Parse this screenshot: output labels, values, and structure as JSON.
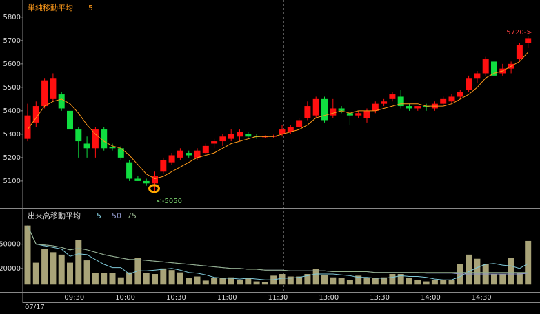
{
  "chart_data": [
    {
      "type": "candlestick",
      "title": "単純移動平均",
      "categories": [
        null,
        null,
        null,
        null,
        null,
        null,
        "09:30",
        null,
        null,
        null,
        null,
        null,
        "10:00",
        null,
        null,
        null,
        null,
        null,
        "10:30",
        null,
        null,
        null,
        null,
        null,
        "11:00",
        null,
        null,
        null,
        null,
        null,
        "11:30",
        null,
        null,
        null,
        null,
        null,
        "13:00",
        null,
        null,
        null,
        null,
        null,
        "13:30",
        null,
        null,
        null,
        null,
        null,
        "14:00",
        null,
        null,
        null,
        null,
        null,
        "14:30",
        null,
        null,
        null,
        null,
        null
      ],
      "open": [
        5280,
        5350,
        5420,
        5450,
        5470,
        5400,
        5320,
        5260,
        5240,
        5320,
        5245,
        5240,
        5180,
        5110,
        5100,
        5090,
        5140,
        5180,
        5200,
        5220,
        5200,
        5220,
        5260,
        5270,
        5280,
        5290,
        5300,
        5292,
        5288,
        5290,
        5300,
        5310,
        5330,
        5370,
        5380,
        5450,
        5380,
        5410,
        5390,
        5380,
        5370,
        5400,
        5430,
        5450,
        5460,
        5420,
        5410,
        5420,
        5410,
        5430,
        5440,
        5460,
        5490,
        5540,
        5560,
        5610,
        5560,
        5580,
        5620,
        5690
      ],
      "high": [
        5430,
        5440,
        5540,
        5560,
        5480,
        5410,
        5330,
        5290,
        5330,
        5330,
        5260,
        5250,
        5190,
        5120,
        5110,
        5140,
        5200,
        5220,
        5240,
        5230,
        5240,
        5260,
        5280,
        5300,
        5320,
        5320,
        5310,
        5300,
        5295,
        5298,
        5340,
        5340,
        5370,
        5440,
        5460,
        5460,
        5450,
        5420,
        5390,
        5400,
        5410,
        5440,
        5450,
        5480,
        5490,
        5430,
        5420,
        5430,
        5440,
        5460,
        5470,
        5490,
        5550,
        5570,
        5630,
        5650,
        5600,
        5610,
        5690,
        5720
      ],
      "low": [
        5270,
        5330,
        5410,
        5440,
        5400,
        5300,
        5200,
        5200,
        5200,
        5230,
        5230,
        5190,
        5100,
        5100,
        5080,
        5050,
        5130,
        5170,
        5190,
        5200,
        5190,
        5210,
        5240,
        5250,
        5270,
        5270,
        5280,
        5280,
        5285,
        5285,
        5290,
        5300,
        5320,
        5360,
        5370,
        5350,
        5370,
        5390,
        5340,
        5370,
        5350,
        5390,
        5420,
        5440,
        5410,
        5400,
        5400,
        5400,
        5400,
        5420,
        5430,
        5450,
        5480,
        5520,
        5550,
        5540,
        5550,
        5560,
        5610,
        5670
      ],
      "close": [
        5380,
        5420,
        5530,
        5540,
        5410,
        5320,
        5270,
        5240,
        5320,
        5240,
        5240,
        5200,
        5110,
        5100,
        5090,
        5120,
        5190,
        5210,
        5230,
        5210,
        5230,
        5250,
        5270,
        5290,
        5300,
        5310,
        5290,
        5288,
        5290,
        5292,
        5320,
        5330,
        5360,
        5420,
        5450,
        5360,
        5410,
        5400,
        5380,
        5390,
        5400,
        5430,
        5440,
        5470,
        5420,
        5410,
        5420,
        5415,
        5430,
        5450,
        5460,
        5480,
        5540,
        5560,
        5620,
        5550,
        5580,
        5600,
        5680,
        5710
      ],
      "up_color": "#ff1010",
      "down_color": "#10dd40",
      "series": [
        {
          "name": "5",
          "color": "#ff9a1a",
          "values": [
            5320,
            5370,
            5420,
            5440,
            5450,
            5430,
            5390,
            5340,
            5300,
            5270,
            5250,
            5240,
            5210,
            5170,
            5130,
            5110,
            5120,
            5140,
            5160,
            5180,
            5200,
            5210,
            5220,
            5240,
            5260,
            5270,
            5280,
            5290,
            5290,
            5290,
            5300,
            5310,
            5320,
            5340,
            5370,
            5380,
            5390,
            5400,
            5390,
            5400,
            5400,
            5400,
            5410,
            5420,
            5430,
            5430,
            5430,
            5420,
            5420,
            5420,
            5430,
            5450,
            5470,
            5500,
            5540,
            5560,
            5570,
            5590,
            5610,
            5650
          ]
        }
      ],
      "annotations": [
        "<-5050",
        "5720->"
      ],
      "ylim": [
        4985,
        5873
      ],
      "yticks": [
        5100,
        5200,
        5300,
        5400,
        5500,
        5600,
        5700,
        5800
      ]
    },
    {
      "type": "bar",
      "title": "出来高移動平均",
      "color": "#a8a378",
      "values": [
        73000,
        27000,
        44000,
        40000,
        37000,
        27000,
        55000,
        30000,
        14000,
        14000,
        14000,
        9000,
        15000,
        33000,
        14000,
        13000,
        20000,
        18000,
        15000,
        8000,
        10000,
        5000,
        8000,
        8000,
        9000,
        6000,
        8000,
        4000,
        3500,
        11000,
        13000,
        10000,
        10000,
        13000,
        19000,
        12000,
        9000,
        8000,
        6000,
        11000,
        8000,
        8000,
        9000,
        13000,
        13000,
        8000,
        6000,
        4000,
        6000,
        6000,
        6000,
        25000,
        37000,
        32000,
        25000,
        13000,
        13000,
        33000,
        15000,
        54000
      ],
      "series": [
        {
          "name": "5",
          "color": "#7fc8d8",
          "values": [
            73000,
            50000,
            48000,
            46000,
            44000,
            35000,
            38000,
            37000,
            31000,
            25000,
            21000,
            21000,
            13000,
            17000,
            17000,
            18000,
            19000,
            20000,
            18000,
            15000,
            14000,
            12000,
            9000,
            8000,
            8000,
            7000,
            8000,
            7000,
            6000,
            6000,
            8000,
            8000,
            9000,
            11000,
            13000,
            13000,
            13000,
            12000,
            11000,
            9000,
            9000,
            8000,
            8000,
            9000,
            11000,
            10000,
            10000,
            9000,
            7000,
            6000,
            6000,
            10000,
            16000,
            21000,
            25000,
            26000,
            24000,
            23000,
            20000,
            26000
          ]
        },
        {
          "name": "50",
          "color": "#8e96c8",
          "values": [
            73000,
            50000,
            49000,
            48000,
            46000,
            43000,
            45000,
            43000,
            40000,
            37000,
            35000,
            33000,
            31000,
            31000,
            30000,
            29000,
            28000,
            27000,
            26000,
            25000,
            24000,
            23000,
            22000,
            21000,
            20000,
            20000,
            19000,
            19000,
            18000,
            18000,
            18000,
            17000,
            17000,
            17000,
            17000,
            17000,
            16000,
            16000,
            16000,
            16000,
            16000,
            15000,
            15000,
            15000,
            15000,
            15000,
            15000,
            14000,
            14000,
            14000,
            14000,
            13000,
            13000,
            13000,
            13000,
            13000,
            13000,
            13000,
            13000,
            14000
          ]
        },
        {
          "name": "75",
          "color": "#93b08a",
          "values": [
            73000,
            50000,
            49000,
            48000,
            46000,
            43000,
            45000,
            43000,
            40000,
            37000,
            35000,
            33000,
            31000,
            31000,
            30000,
            29000,
            28000,
            27000,
            26000,
            25000,
            24000,
            23000,
            22000,
            21000,
            20000,
            20000,
            19000,
            19000,
            18000,
            18000,
            18000,
            17000,
            17000,
            17000,
            17000,
            17000,
            16000,
            16000,
            16000,
            16000,
            16000,
            15000,
            15000,
            15000,
            15000,
            15000,
            15000,
            15000,
            15000,
            15000,
            15000,
            15000,
            15000,
            15000,
            15000,
            15000,
            15000,
            15000,
            15000,
            15000
          ]
        }
      ],
      "date": "07/17",
      "ylim": [
        -10000,
        94000
      ],
      "yticks": [
        20000,
        50000
      ]
    }
  ]
}
